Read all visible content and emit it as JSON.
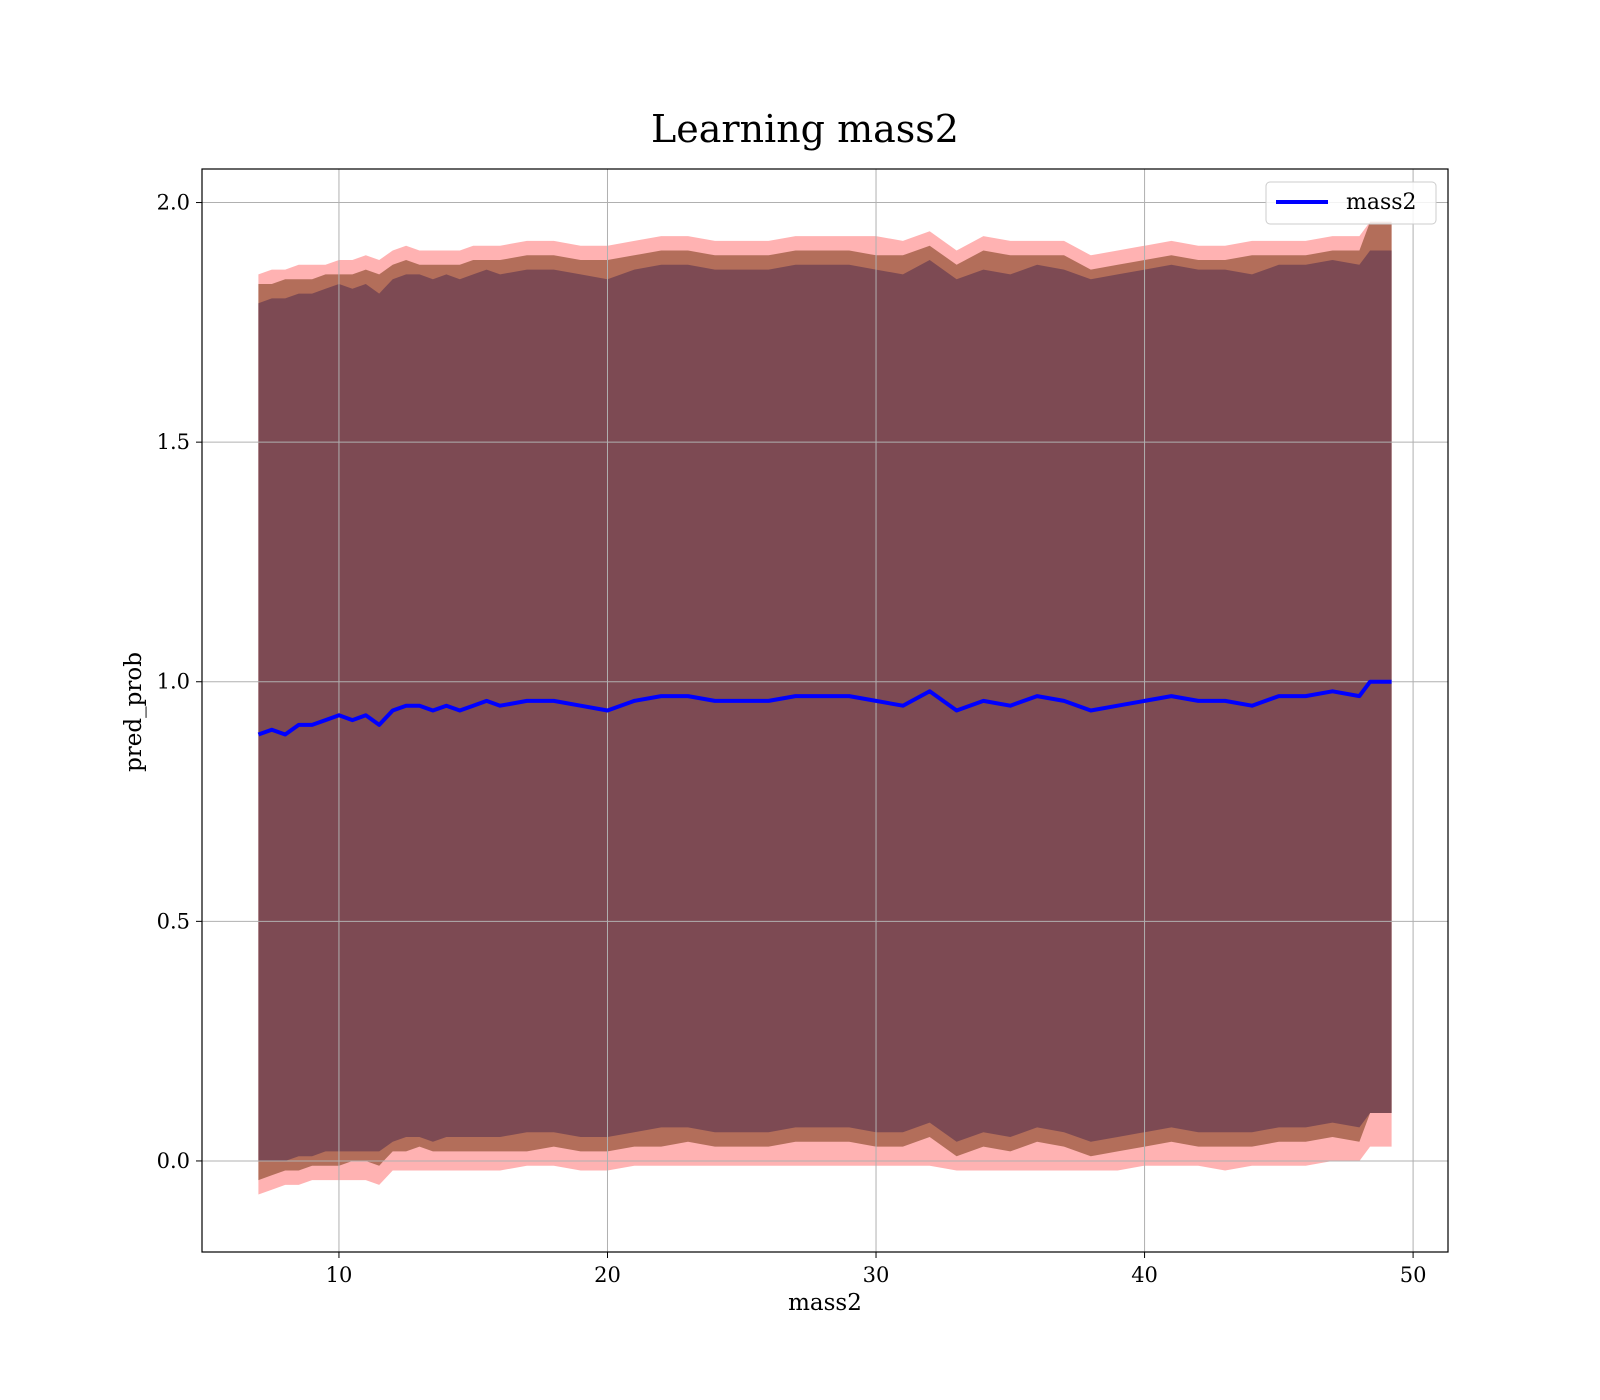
{
  "chart_data": {
    "type": "line",
    "title": "Learning mass2",
    "xlabel": "mass2",
    "ylabel": "pred_prob",
    "xlim": [
      4.9,
      51.3
    ],
    "ylim": [
      -0.19,
      2.07
    ],
    "xticks": [
      10,
      20,
      30,
      40,
      50
    ],
    "yticks": [
      0.0,
      0.5,
      1.0,
      1.5,
      2.0
    ],
    "xtick_labels": [
      "10",
      "20",
      "30",
      "40",
      "50"
    ],
    "ytick_labels": [
      "0.0",
      "0.5",
      "1.0",
      "1.5",
      "2.0"
    ],
    "grid": true,
    "legend_position": "top-right",
    "series": [
      {
        "name": "mass2",
        "color": "#0000ff",
        "x": [
          7.0,
          7.5,
          8.0,
          8.5,
          9.0,
          9.5,
          10.0,
          10.5,
          11.0,
          11.5,
          12.0,
          12.5,
          13.0,
          13.5,
          14.0,
          14.5,
          15.0,
          15.5,
          16.0,
          17.0,
          18.0,
          19.0,
          20.0,
          21.0,
          22.0,
          23.0,
          24.0,
          25.0,
          26.0,
          27.0,
          28.0,
          29.0,
          30.0,
          31.0,
          32.0,
          33.0,
          34.0,
          35.0,
          36.0,
          37.0,
          38.0,
          39.0,
          40.0,
          41.0,
          42.0,
          43.0,
          44.0,
          45.0,
          46.0,
          47.0,
          48.0,
          48.4,
          49.2
        ],
        "y": [
          0.89,
          0.9,
          0.89,
          0.91,
          0.91,
          0.92,
          0.93,
          0.92,
          0.93,
          0.91,
          0.94,
          0.95,
          0.95,
          0.94,
          0.95,
          0.94,
          0.95,
          0.96,
          0.95,
          0.96,
          0.96,
          0.95,
          0.94,
          0.96,
          0.97,
          0.97,
          0.96,
          0.96,
          0.96,
          0.97,
          0.97,
          0.97,
          0.96,
          0.95,
          0.98,
          0.94,
          0.96,
          0.95,
          0.97,
          0.96,
          0.94,
          0.95,
          0.96,
          0.97,
          0.96,
          0.96,
          0.95,
          0.97,
          0.97,
          0.98,
          0.97,
          1.0,
          1.0
        ]
      }
    ],
    "bands": [
      {
        "color": "#ff0000",
        "opacity": 0.3,
        "lower": [
          -0.07,
          -0.06,
          -0.05,
          -0.05,
          -0.04,
          -0.04,
          -0.04,
          -0.04,
          -0.04,
          -0.05,
          -0.02,
          -0.02,
          -0.02,
          -0.02,
          -0.02,
          -0.02,
          -0.02,
          -0.02,
          -0.02,
          -0.01,
          -0.01,
          -0.02,
          -0.02,
          -0.01,
          -0.01,
          -0.01,
          -0.01,
          -0.01,
          -0.01,
          -0.01,
          -0.01,
          -0.01,
          -0.01,
          -0.01,
          -0.01,
          -0.02,
          -0.02,
          -0.02,
          -0.02,
          -0.02,
          -0.02,
          -0.02,
          -0.01,
          -0.01,
          -0.01,
          -0.02,
          -0.01,
          -0.01,
          -0.01,
          0.0,
          0.0,
          0.03,
          0.03
        ],
        "upper": [
          1.85,
          1.86,
          1.86,
          1.87,
          1.87,
          1.87,
          1.88,
          1.88,
          1.89,
          1.88,
          1.9,
          1.91,
          1.9,
          1.9,
          1.9,
          1.9,
          1.91,
          1.91,
          1.91,
          1.92,
          1.92,
          1.91,
          1.91,
          1.92,
          1.93,
          1.93,
          1.92,
          1.92,
          1.92,
          1.93,
          1.93,
          1.93,
          1.93,
          1.92,
          1.94,
          1.9,
          1.93,
          1.92,
          1.92,
          1.92,
          1.89,
          1.9,
          1.91,
          1.92,
          1.91,
          1.91,
          1.92,
          1.92,
          1.92,
          1.93,
          1.93,
          1.96,
          1.96
        ]
      },
      {
        "color": "#8b4a2b",
        "opacity": 0.65,
        "lower": [
          -0.04,
          -0.03,
          -0.02,
          -0.02,
          -0.01,
          -0.01,
          -0.01,
          0.0,
          0.0,
          -0.01,
          0.02,
          0.02,
          0.03,
          0.02,
          0.02,
          0.02,
          0.02,
          0.02,
          0.02,
          0.02,
          0.03,
          0.02,
          0.02,
          0.03,
          0.03,
          0.04,
          0.03,
          0.03,
          0.03,
          0.04,
          0.04,
          0.04,
          0.03,
          0.03,
          0.05,
          0.01,
          0.03,
          0.02,
          0.04,
          0.03,
          0.01,
          0.02,
          0.03,
          0.04,
          0.03,
          0.03,
          0.03,
          0.04,
          0.04,
          0.05,
          0.04,
          0.1,
          0.1
        ],
        "upper": [
          1.83,
          1.83,
          1.84,
          1.84,
          1.84,
          1.85,
          1.85,
          1.85,
          1.86,
          1.85,
          1.87,
          1.88,
          1.87,
          1.87,
          1.87,
          1.87,
          1.88,
          1.88,
          1.88,
          1.89,
          1.89,
          1.88,
          1.88,
          1.89,
          1.9,
          1.9,
          1.89,
          1.89,
          1.89,
          1.9,
          1.9,
          1.9,
          1.89,
          1.89,
          1.91,
          1.87,
          1.9,
          1.89,
          1.89,
          1.89,
          1.86,
          1.87,
          1.88,
          1.89,
          1.88,
          1.88,
          1.89,
          1.89,
          1.89,
          1.9,
          1.9,
          1.96,
          1.96
        ]
      },
      {
        "color": "#6b3f52",
        "opacity": 0.75,
        "lower": [
          0.0,
          0.0,
          0.0,
          0.01,
          0.01,
          0.02,
          0.02,
          0.02,
          0.02,
          0.02,
          0.04,
          0.05,
          0.05,
          0.04,
          0.05,
          0.05,
          0.05,
          0.05,
          0.05,
          0.06,
          0.06,
          0.05,
          0.05,
          0.06,
          0.07,
          0.07,
          0.06,
          0.06,
          0.06,
          0.07,
          0.07,
          0.07,
          0.06,
          0.06,
          0.08,
          0.04,
          0.06,
          0.05,
          0.07,
          0.06,
          0.04,
          0.05,
          0.06,
          0.07,
          0.06,
          0.06,
          0.06,
          0.07,
          0.07,
          0.08,
          0.07,
          0.1,
          0.1
        ],
        "upper": [
          1.79,
          1.8,
          1.8,
          1.81,
          1.81,
          1.82,
          1.83,
          1.82,
          1.83,
          1.81,
          1.84,
          1.85,
          1.85,
          1.84,
          1.85,
          1.84,
          1.85,
          1.86,
          1.85,
          1.86,
          1.86,
          1.85,
          1.84,
          1.86,
          1.87,
          1.87,
          1.86,
          1.86,
          1.86,
          1.87,
          1.87,
          1.87,
          1.86,
          1.85,
          1.88,
          1.84,
          1.86,
          1.85,
          1.87,
          1.86,
          1.84,
          1.85,
          1.86,
          1.87,
          1.86,
          1.86,
          1.85,
          1.87,
          1.87,
          1.88,
          1.87,
          1.9,
          1.9
        ]
      }
    ]
  }
}
